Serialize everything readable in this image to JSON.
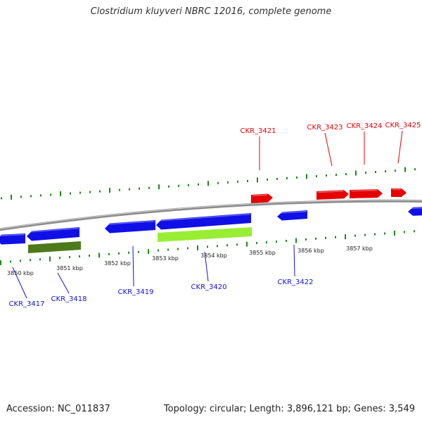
{
  "title": "Clostridium kluyveri NBRC 12016, complete genome",
  "footer": {
    "accession": "Accession: NC_011837",
    "summary": "Topology: circular; Length: 3,896,121 bp; Genes: 3,549"
  },
  "colors": {
    "forward_gene": "#e60000",
    "reverse_gene": "#1010e6",
    "rrna_dark": "#4d7a1a",
    "rrna_light": "#99ee33",
    "tick": "#1a8a1a",
    "backbone": "#8c8c8c"
  },
  "scale_labels": [
    "3850 kbp",
    "3851 kbp",
    "3852 kbp",
    "3853 kbp",
    "3854 kbp",
    "3855 kbp",
    "3856 kbp",
    "3857 kbp"
  ],
  "genes_forward": [
    {
      "label": "CKR_3421"
    },
    {
      "label": "CKR_3423"
    },
    {
      "label": "CKR_3424"
    },
    {
      "label": "CKR_3425"
    }
  ],
  "genes_reverse": [
    {
      "label": "CKR_3417"
    },
    {
      "label": "CKR_3418"
    },
    {
      "label": "CKR_3419"
    },
    {
      "label": "CKR_3420"
    },
    {
      "label": "CKR_3422"
    }
  ]
}
